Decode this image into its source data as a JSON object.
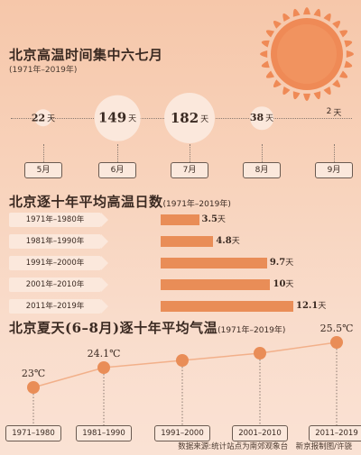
{
  "section1": {
    "title": "北京高温时间集中六七月",
    "subtitle": "(1971年–2019年)"
  },
  "section2": {
    "title": "北京逐十年平均高温日数",
    "subtitle": "(1971年–2019年)"
  },
  "section3": {
    "title": "北京夏天(6–8月)逐十年平均气温",
    "subtitle": "(1971年–2019年)"
  },
  "source": "数据来源:统计站点为南郊观象台　新京报制图/许骁",
  "colors": {
    "accent": "#e98d57",
    "bubble": "#fbe8dc",
    "sun": "#ef8a56"
  },
  "icons": {
    "sun": "sun-icon"
  },
  "chart_data": [
    {
      "type": "scatter",
      "title": "北京高温时间集中六七月",
      "subtitle": "(1971年–2019年)",
      "categories": [
        "5月",
        "6月",
        "7月",
        "8月",
        "9月"
      ],
      "values": [
        22,
        149,
        182,
        38,
        2
      ],
      "unit": "天"
    },
    {
      "type": "bar",
      "title": "北京逐十年平均高温日数",
      "subtitle": "(1971年–2019年)",
      "categories": [
        "1971年–1980年",
        "1981年–1990年",
        "1991年–2000年",
        "2001年–2010年",
        "2011年–2019年"
      ],
      "values": [
        3.5,
        4.8,
        9.7,
        10,
        12.1
      ],
      "value_labels": [
        "3.5",
        "4.8",
        "9.7",
        "10",
        "12.1"
      ],
      "unit": "天",
      "xlim": [
        0,
        12.1
      ]
    },
    {
      "type": "line",
      "title": "北京夏天(6–8月)逐十年平均气温",
      "subtitle": "(1971年–2019年)",
      "categories": [
        "1971–1980",
        "1981–1990",
        "1991–2000",
        "2001–2010",
        "2011–2019"
      ],
      "values": [
        23,
        24.1,
        24.5,
        24.9,
        25.5
      ],
      "labeled": [
        "23℃",
        "24.1℃",
        "",
        "",
        "25.5℃"
      ],
      "unit": "℃",
      "ylim": [
        22.5,
        26
      ]
    }
  ]
}
